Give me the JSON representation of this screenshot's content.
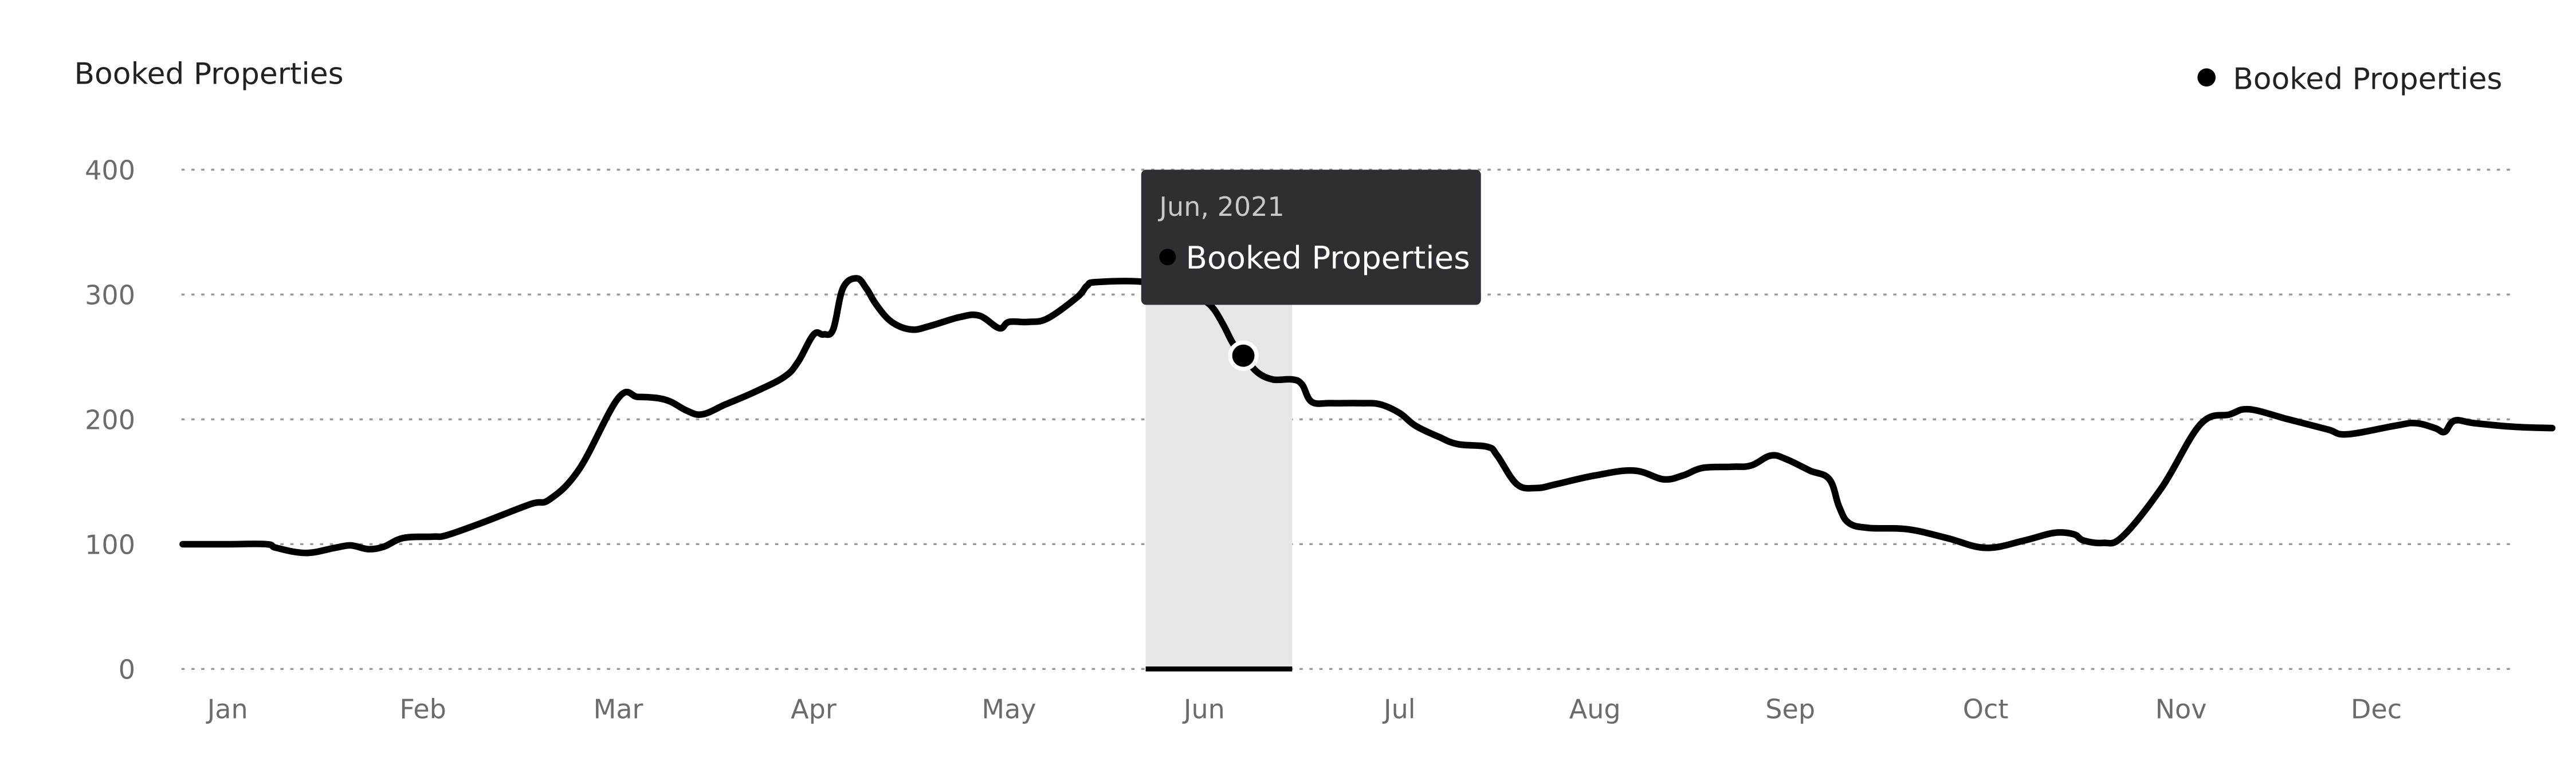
{
  "chart_data": {
    "type": "line",
    "title": "Booked Properties",
    "legend": {
      "position": "top-right",
      "entries": [
        "Booked Properties"
      ]
    },
    "grid": true,
    "ylim": [
      0,
      400
    ],
    "y_ticks": [
      0,
      100,
      200,
      300,
      400
    ],
    "x_ticks": [
      "Jan",
      "Feb",
      "Mar",
      "Apr",
      "May",
      "Jun",
      "Jul",
      "Aug",
      "Sep",
      "Oct",
      "Nov",
      "Dec"
    ],
    "x_range": [
      0,
      11.9
    ],
    "series": [
      {
        "name": "Booked Properties",
        "color": "#000000",
        "points": [
          [
            -0.23,
            100
          ],
          [
            0.0,
            100
          ],
          [
            0.2,
            100
          ],
          [
            0.25,
            97
          ],
          [
            0.4,
            93
          ],
          [
            0.55,
            97
          ],
          [
            0.63,
            99
          ],
          [
            0.72,
            96
          ],
          [
            0.8,
            98
          ],
          [
            0.9,
            105
          ],
          [
            1.05,
            106
          ],
          [
            1.12,
            107
          ],
          [
            1.3,
            117
          ],
          [
            1.55,
            132
          ],
          [
            1.65,
            136
          ],
          [
            1.8,
            160
          ],
          [
            2.0,
            217
          ],
          [
            2.1,
            218
          ],
          [
            2.2,
            217
          ],
          [
            2.27,
            214
          ],
          [
            2.35,
            207
          ],
          [
            2.43,
            204
          ],
          [
            2.55,
            212
          ],
          [
            2.7,
            222
          ],
          [
            2.85,
            234
          ],
          [
            2.92,
            246
          ],
          [
            3.0,
            268
          ],
          [
            3.05,
            268
          ],
          [
            3.1,
            272
          ],
          [
            3.15,
            305
          ],
          [
            3.22,
            313
          ],
          [
            3.27,
            305
          ],
          [
            3.32,
            292
          ],
          [
            3.4,
            278
          ],
          [
            3.5,
            272
          ],
          [
            3.6,
            275
          ],
          [
            3.75,
            282
          ],
          [
            3.85,
            283
          ],
          [
            3.95,
            273
          ],
          [
            4.0,
            278
          ],
          [
            4.1,
            278
          ],
          [
            4.2,
            281
          ],
          [
            4.35,
            298
          ],
          [
            4.4,
            307
          ],
          [
            4.45,
            310
          ],
          [
            4.7,
            310
          ],
          [
            4.9,
            302
          ],
          [
            5.0,
            295
          ],
          [
            5.05,
            288
          ],
          [
            5.1,
            275
          ],
          [
            5.15,
            260
          ],
          [
            5.2,
            251
          ],
          [
            5.27,
            238
          ],
          [
            5.35,
            232
          ],
          [
            5.45,
            232
          ],
          [
            5.5,
            228
          ],
          [
            5.55,
            214
          ],
          [
            5.65,
            213
          ],
          [
            5.8,
            213
          ],
          [
            5.9,
            212
          ],
          [
            6.0,
            205
          ],
          [
            6.08,
            195
          ],
          [
            6.2,
            186
          ],
          [
            6.3,
            180
          ],
          [
            6.45,
            178
          ],
          [
            6.5,
            171
          ],
          [
            6.6,
            148
          ],
          [
            6.7,
            145
          ],
          [
            6.8,
            148
          ],
          [
            7.0,
            155
          ],
          [
            7.2,
            159
          ],
          [
            7.35,
            152
          ],
          [
            7.45,
            155
          ],
          [
            7.55,
            161
          ],
          [
            7.7,
            162
          ],
          [
            7.8,
            163
          ],
          [
            7.9,
            171
          ],
          [
            7.98,
            168
          ],
          [
            8.1,
            159
          ],
          [
            8.2,
            152
          ],
          [
            8.25,
            130
          ],
          [
            8.3,
            117
          ],
          [
            8.4,
            113
          ],
          [
            8.6,
            112
          ],
          [
            8.8,
            105
          ],
          [
            9.0,
            97
          ],
          [
            9.2,
            103
          ],
          [
            9.35,
            109
          ],
          [
            9.45,
            108
          ],
          [
            9.5,
            103
          ],
          [
            9.6,
            101
          ],
          [
            9.7,
            106
          ],
          [
            9.9,
            145
          ],
          [
            10.1,
            196
          ],
          [
            10.25,
            204
          ],
          [
            10.35,
            208
          ],
          [
            10.55,
            200
          ],
          [
            10.75,
            192
          ],
          [
            10.85,
            188
          ],
          [
            11.1,
            195
          ],
          [
            11.2,
            197
          ],
          [
            11.3,
            193
          ],
          [
            11.35,
            190
          ],
          [
            11.4,
            199
          ],
          [
            11.5,
            197
          ],
          [
            11.7,
            194
          ],
          [
            11.9,
            193
          ]
        ]
      }
    ],
    "highlight": {
      "month": "Jun",
      "x_start": 4.7,
      "x_end": 5.45,
      "fill": "#e6e6e6"
    },
    "hover_point": {
      "x": 5.2,
      "y": 251
    },
    "tooltip": {
      "date": "Jun, 2021",
      "series": "Booked Properties",
      "bg": "#2e2e33"
    }
  }
}
